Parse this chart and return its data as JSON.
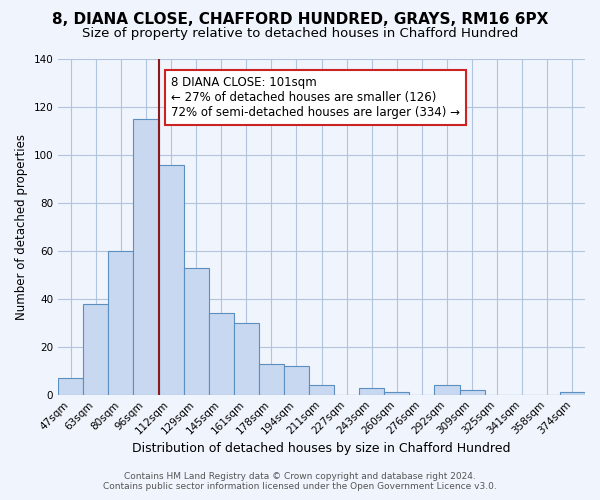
{
  "title": "8, DIANA CLOSE, CHAFFORD HUNDRED, GRAYS, RM16 6PX",
  "subtitle": "Size of property relative to detached houses in Chafford Hundred",
  "xlabel": "Distribution of detached houses by size in Chafford Hundred",
  "ylabel": "Number of detached properties",
  "footnote1": "Contains HM Land Registry data © Crown copyright and database right 2024.",
  "footnote2": "Contains public sector information licensed under the Open Government Licence v3.0.",
  "annotation_line1": "8 DIANA CLOSE: 101sqm",
  "annotation_line2": "← 27% of detached houses are smaller (126)",
  "annotation_line3": "72% of semi-detached houses are larger (334) →",
  "bin_labels": [
    "47sqm",
    "63sqm",
    "80sqm",
    "96sqm",
    "112sqm",
    "129sqm",
    "145sqm",
    "161sqm",
    "178sqm",
    "194sqm",
    "211sqm",
    "227sqm",
    "243sqm",
    "260sqm",
    "276sqm",
    "292sqm",
    "309sqm",
    "325sqm",
    "341sqm",
    "358sqm",
    "374sqm"
  ],
  "bin_values": [
    7,
    38,
    60,
    115,
    96,
    53,
    34,
    30,
    13,
    12,
    4,
    0,
    3,
    1,
    0,
    4,
    2,
    0,
    0,
    0,
    1
  ],
  "bar_color": "#c8d8f0",
  "bar_edge_color": "#5a8fc0",
  "vline_color": "#8b1a1a",
  "ylim": [
    0,
    140
  ],
  "yticks": [
    0,
    20,
    40,
    60,
    80,
    100,
    120,
    140
  ],
  "bg_color": "#f0f4fc",
  "grid_color": "#b0c4de",
  "title_fontsize": 11,
  "subtitle_fontsize": 9.5,
  "xlabel_fontsize": 9,
  "ylabel_fontsize": 8.5,
  "tick_fontsize": 7.5,
  "annotation_fontsize": 8.5,
  "footnote_fontsize": 6.5
}
